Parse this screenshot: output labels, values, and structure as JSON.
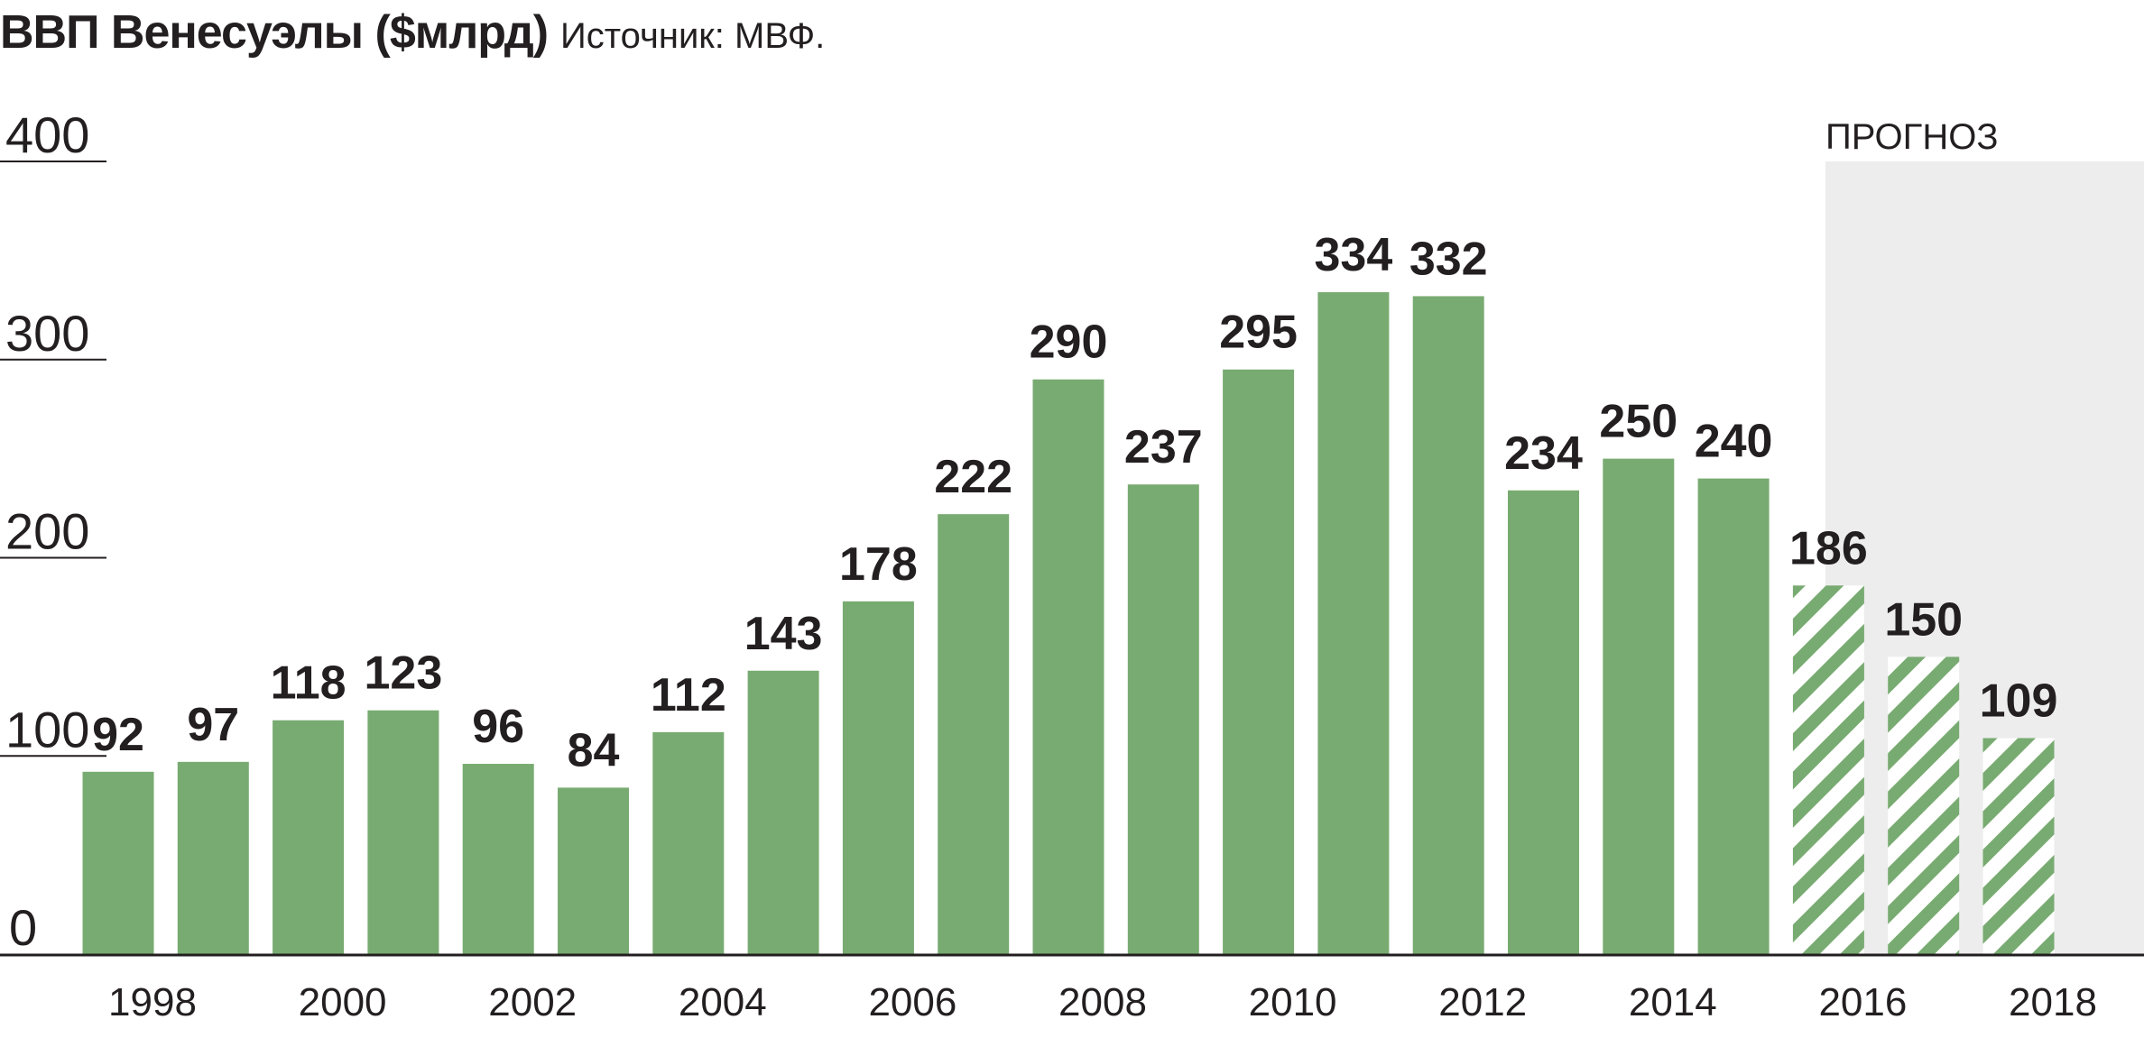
{
  "header": {
    "title": "ВВП Венесуэлы ($млрд)",
    "source": "Источник: МВФ."
  },
  "colors": {
    "bar": "#78ab71",
    "forecast_bg": "#ededed",
    "text": "#231f20",
    "axis": "#231f20"
  },
  "chart_data": {
    "type": "bar",
    "title": "ВВП Венесуэлы ($млрд)",
    "xlabel": "",
    "ylabel": "",
    "ylim": [
      0,
      400
    ],
    "yticks": [
      "0",
      "100",
      "200",
      "300",
      "400"
    ],
    "x": [
      1998,
      1999,
      2000,
      2001,
      2002,
      2003,
      2004,
      2005,
      2006,
      2007,
      2008,
      2009,
      2010,
      2011,
      2012,
      2013,
      2014,
      2015,
      2016,
      2017,
      2018
    ],
    "xtick_labels": [
      "1998",
      "2000",
      "2002",
      "2004",
      "2006",
      "2008",
      "2010",
      "2012",
      "2014",
      "2016",
      "2018"
    ],
    "values": [
      92,
      97,
      118,
      123,
      96,
      84,
      112,
      143,
      178,
      222,
      290,
      237,
      295,
      334,
      332,
      234,
      250,
      240,
      186,
      150,
      109
    ],
    "forecast_from": 2016,
    "forecast_label": "ПРОГНОЗ",
    "forecast_style": "hatched",
    "grid": false
  }
}
